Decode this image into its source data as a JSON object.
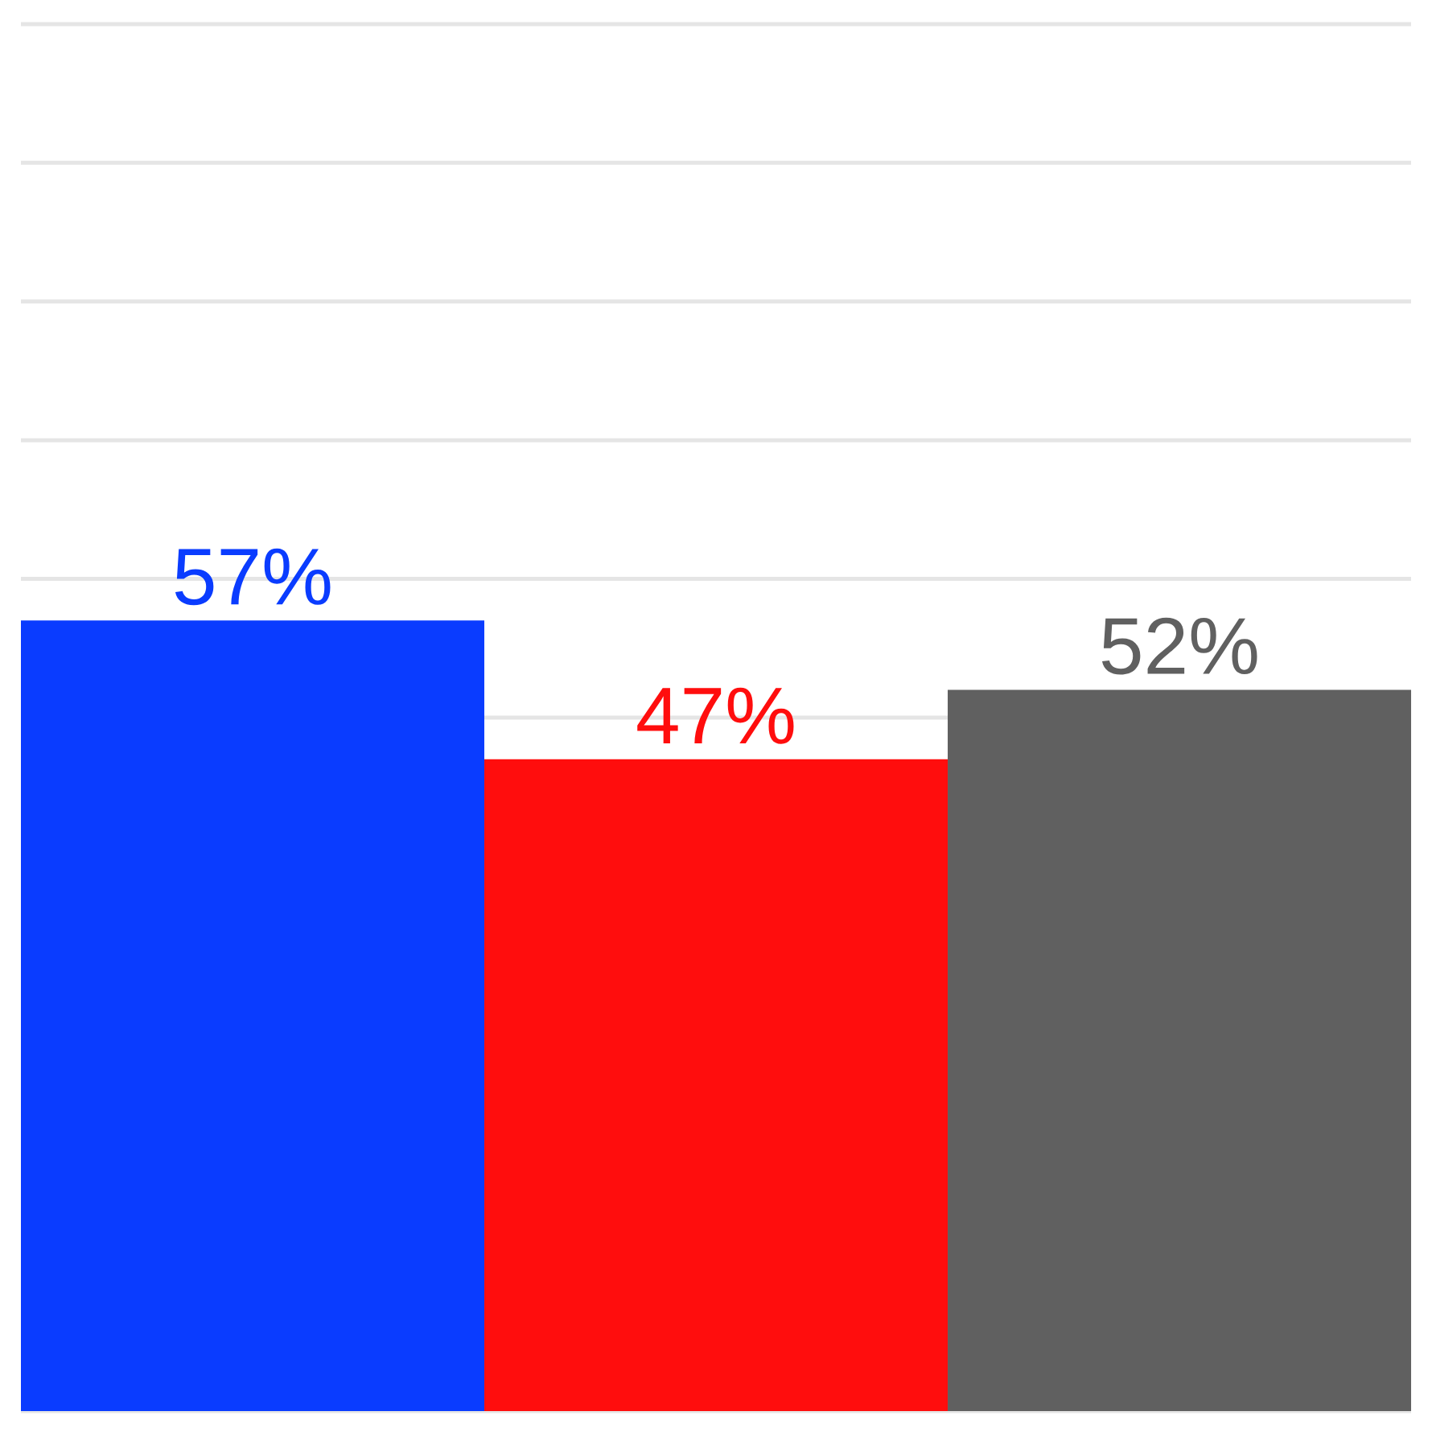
{
  "chart_data": {
    "type": "bar",
    "categories": [
      null,
      null,
      null
    ],
    "values": [
      57,
      47,
      52
    ],
    "colors": [
      "#0a3cff",
      "#ff0d0d",
      "#606060"
    ],
    "value_labels": [
      "57%",
      "47%",
      "52%"
    ],
    "ylim": [
      0,
      100
    ],
    "yticks": [
      {
        "value": 0,
        "label": null
      },
      {
        "value": 10,
        "label": null
      },
      {
        "value": 20,
        "label": null
      },
      {
        "value": 30,
        "label": null
      },
      {
        "value": 40,
        "label": null
      },
      {
        "value": 50,
        "label": null
      },
      {
        "value": 60,
        "label": null
      },
      {
        "value": 70,
        "label": null
      },
      {
        "value": 80,
        "label": null
      },
      {
        "value": 90,
        "label": null
      },
      {
        "value": 100,
        "label": null
      }
    ],
    "grid": "y"
  }
}
